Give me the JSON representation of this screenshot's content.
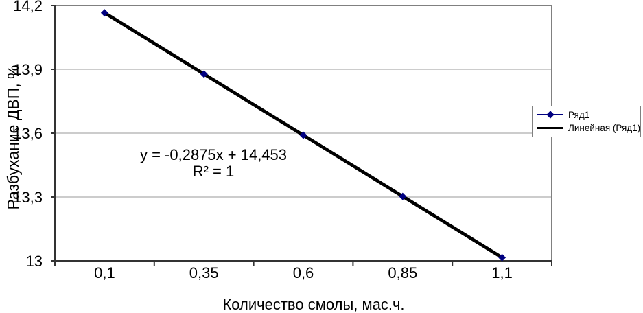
{
  "chart_data": {
    "type": "line",
    "title": "",
    "xlabel": "Количество смолы, мас.ч.",
    "ylabel": "Разбухание ДВП, %",
    "categories": [
      "0,1",
      "0,35",
      "0,6",
      "0,85",
      "1,1"
    ],
    "x_numeric": [
      0.1,
      0.35,
      0.6,
      0.85,
      1.1
    ],
    "series": [
      {
        "name": "Ряд1",
        "values": [
          14.1655,
          13.878,
          13.5905,
          13.303,
          13.0155
        ],
        "color": "#000080",
        "marker": "diamond"
      }
    ],
    "trendline": {
      "name": "Линейная (Ряд1)",
      "color": "#000000",
      "equation": "y = -0,2875x + 14,453",
      "r2": "R² = 1"
    },
    "ylim": [
      13,
      14.2
    ],
    "yticks": [
      "13",
      "13,3",
      "13,6",
      "13,9",
      "14,2"
    ],
    "ytick_values": [
      13,
      13.3,
      13.6,
      13.9,
      14.2
    ],
    "grid": true,
    "legend_position": "right-overlay"
  },
  "colors": {
    "series": "#000080",
    "trendline": "#000000",
    "plot_border": "#808080",
    "axis": "#333333",
    "gridline": "#999999"
  }
}
